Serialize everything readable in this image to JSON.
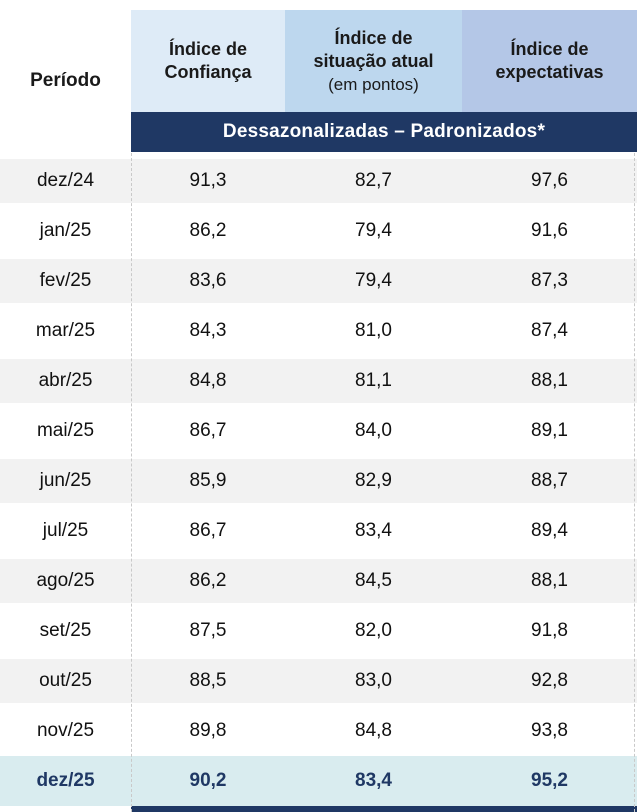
{
  "table": {
    "period_header": "Período",
    "columns": [
      {
        "line1": "Índice de",
        "line2": "Confiança",
        "sub": ""
      },
      {
        "line1": "Índice de",
        "line2": "situação atual",
        "sub": "(em pontos)"
      },
      {
        "line1": "Índice de",
        "line2": "expectativas",
        "sub": ""
      }
    ],
    "banner": "Dessazonalizadas – Padronizados*",
    "rows": [
      {
        "period": "dez/24",
        "values": [
          "91,3",
          "82,7",
          "97,6"
        ],
        "highlight": false
      },
      {
        "period": "jan/25",
        "values": [
          "86,2",
          "79,4",
          "91,6"
        ],
        "highlight": false
      },
      {
        "period": "fev/25",
        "values": [
          "83,6",
          "79,4",
          "87,3"
        ],
        "highlight": false
      },
      {
        "period": "mar/25",
        "values": [
          "84,3",
          "81,0",
          "87,4"
        ],
        "highlight": false
      },
      {
        "period": "abr/25",
        "values": [
          "84,8",
          "81,1",
          "88,1"
        ],
        "highlight": false
      },
      {
        "period": "mai/25",
        "values": [
          "86,7",
          "84,0",
          "89,1"
        ],
        "highlight": false
      },
      {
        "period": "jun/25",
        "values": [
          "85,9",
          "82,9",
          "88,7"
        ],
        "highlight": false
      },
      {
        "period": "jul/25",
        "values": [
          "86,7",
          "83,4",
          "89,4"
        ],
        "highlight": false
      },
      {
        "period": "ago/25",
        "values": [
          "86,2",
          "84,5",
          "88,1"
        ],
        "highlight": false
      },
      {
        "period": "set/25",
        "values": [
          "87,5",
          "82,0",
          "91,8"
        ],
        "highlight": false
      },
      {
        "period": "out/25",
        "values": [
          "88,5",
          "83,0",
          "92,8"
        ],
        "highlight": false
      },
      {
        "period": "nov/25",
        "values": [
          "89,8",
          "84,8",
          "93,8"
        ],
        "highlight": false
      },
      {
        "period": "dez/25",
        "values": [
          "90,2",
          "83,4",
          "95,2"
        ],
        "highlight": true
      }
    ]
  },
  "chart_data": {
    "type": "table",
    "title": "Dessazonalizadas – Padronizados*",
    "categories": [
      "dez/24",
      "jan/25",
      "fev/25",
      "mar/25",
      "abr/25",
      "mai/25",
      "jun/25",
      "jul/25",
      "ago/25",
      "set/25",
      "out/25",
      "nov/25",
      "dez/25"
    ],
    "series": [
      {
        "name": "Índice de Confiança",
        "values": [
          91.3,
          86.2,
          83.6,
          84.3,
          84.8,
          86.7,
          85.9,
          86.7,
          86.2,
          87.5,
          88.5,
          89.8,
          90.2
        ]
      },
      {
        "name": "Índice de situação atual (em pontos)",
        "values": [
          82.7,
          79.4,
          79.4,
          81.0,
          81.1,
          84.0,
          82.9,
          83.4,
          84.5,
          82.0,
          83.0,
          84.8,
          83.4
        ]
      },
      {
        "name": "Índice de expectativas",
        "values": [
          97.6,
          91.6,
          87.3,
          87.4,
          88.1,
          89.1,
          88.7,
          89.4,
          88.1,
          91.8,
          92.8,
          93.8,
          95.2
        ]
      }
    ],
    "highlighted_row": "dez/25"
  },
  "colors": {
    "navy": "#1F3864",
    "head1": "#DEEBF7",
    "head2": "#BDD7EE",
    "head3": "#B4C7E7",
    "stripe": "#F2F2F2",
    "highlight": "#D9ECEF"
  }
}
